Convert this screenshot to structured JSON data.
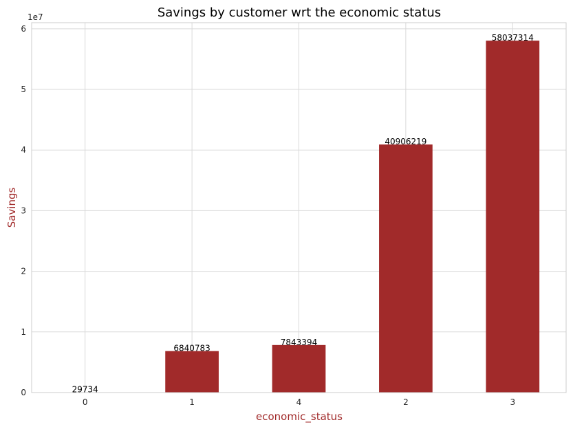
{
  "chart_data": {
    "type": "bar",
    "title": "Savings by customer wrt the economic status",
    "xlabel": "economic_status",
    "ylabel": "Savings",
    "categories": [
      "0",
      "1",
      "4",
      "2",
      "3"
    ],
    "values": [
      29734,
      6840783,
      7843394,
      40906219,
      58037314
    ],
    "data_labels": [
      "29734",
      "6840783",
      "7843394",
      "40906219",
      "58037314"
    ],
    "ylim": [
      0,
      61000000
    ],
    "y_ticks": [
      0,
      10000000,
      20000000,
      30000000,
      40000000,
      50000000,
      60000000
    ],
    "y_tick_labels": [
      "0",
      "1",
      "2",
      "3",
      "4",
      "5",
      "6"
    ],
    "y_offset_label": "1e7",
    "grid": true,
    "colors": {
      "bar": "#a12a2a",
      "axis_label": "#a12a2a",
      "grid": "#d9d9d9",
      "spine": "#cccccc"
    }
  }
}
